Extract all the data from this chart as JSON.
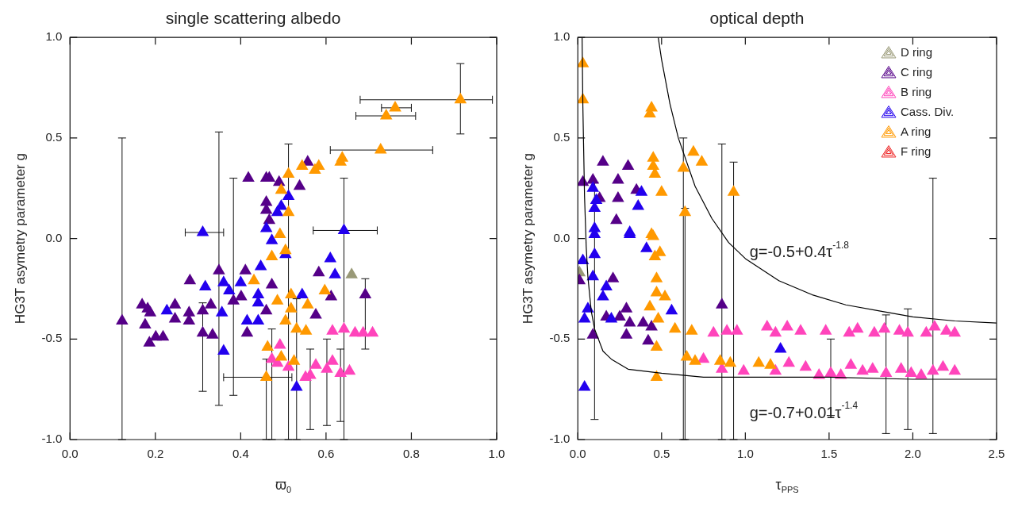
{
  "chart_data": [
    {
      "type": "scatter",
      "title": "single scattering albedo",
      "xlabel": "ϖ$_{0}$",
      "ylabel": "HG3T asymetry parameter g",
      "xlim": [
        0,
        1
      ],
      "xticks": [
        {
          "value": 0,
          "label": "0.0"
        },
        {
          "value": 0.2,
          "label": "0.2"
        },
        {
          "value": 0.4,
          "label": "0.4"
        },
        {
          "value": 0.6,
          "label": "0.6"
        },
        {
          "value": 0.8,
          "label": "0.8"
        },
        {
          "value": 1,
          "label": "1.0"
        }
      ],
      "ylim": [
        -1,
        1
      ],
      "yticks": [
        {
          "value": -1,
          "label": "-1.0"
        },
        {
          "value": -0.5,
          "label": "-0.5"
        },
        {
          "value": 0,
          "label": "0.0"
        },
        {
          "value": 0.5,
          "label": "0.5"
        },
        {
          "value": 1,
          "label": "1.0"
        }
      ],
      "marker": "triangle",
      "grid": false,
      "legend": false,
      "series": [
        {
          "color": "#999977",
          "x": [
            0.66
          ],
          "values": [
            -0.18
          ]
        },
        {
          "color": "#550088",
          "x": [
            0.418,
            0.46,
            0.467,
            0.49,
            0.557,
            0.538,
            0.46,
            0.46,
            0.467,
            0.281,
            0.349,
            0.411,
            0.473,
            0.583,
            0.612,
            0.692,
            0.122,
            0.169,
            0.182,
            0.176,
            0.188,
            0.186,
            0.201,
            0.218,
            0.246,
            0.246,
            0.279,
            0.279,
            0.311,
            0.33,
            0.311,
            0.334,
            0.383,
            0.401,
            0.415,
            0.46,
            0.576
          ],
          "values": [
            0.3,
            0.3,
            0.3,
            0.28,
            0.38,
            0.26,
            0.18,
            0.14,
            0.09,
            -0.21,
            -0.16,
            -0.16,
            -0.23,
            -0.17,
            -0.29,
            -0.28,
            -0.41,
            -0.33,
            -0.35,
            -0.43,
            -0.37,
            -0.52,
            -0.49,
            -0.49,
            -0.33,
            -0.4,
            -0.37,
            -0.41,
            -0.36,
            -0.33,
            -0.47,
            -0.48,
            -0.31,
            -0.29,
            -0.47,
            -0.36,
            -0.38
          ],
          "errors": [
            null,
            null,
            null,
            null,
            null,
            null,
            null,
            null,
            null,
            null,
            [
              -0.83,
              0.53
            ],
            null,
            null,
            null,
            null,
            [
              -0.55,
              -0.2
            ],
            [
              -1.0,
              0.5
            ],
            null,
            null,
            null,
            null,
            null,
            null,
            null,
            null,
            null,
            null,
            null,
            null,
            null,
            [
              -0.76,
              -0.32
            ],
            null,
            [
              -0.78,
              0.3
            ],
            null,
            null,
            null,
            null
          ]
        },
        {
          "color": "#ff44bb",
          "x": [
            0.615,
            0.642,
            0.668,
            0.687,
            0.709,
            0.492,
            0.473,
            0.486,
            0.512,
            0.563,
            0.576,
            0.602,
            0.615,
            0.634,
            0.655,
            0.552
          ],
          "values": [
            -0.46,
            -0.45,
            -0.47,
            -0.47,
            -0.47,
            -0.53,
            -0.6,
            -0.62,
            -0.64,
            -0.68,
            -0.63,
            -0.65,
            -0.61,
            -0.67,
            -0.66,
            -0.69
          ],
          "errors": [
            null,
            null,
            null,
            null,
            null,
            null,
            [
              -1.0,
              -0.45
            ],
            null,
            null,
            [
              -0.95,
              -0.55
            ],
            null,
            [
              -0.93,
              -0.5
            ],
            null,
            [
              -0.91,
              -0.55
            ],
            null,
            null
          ]
        },
        {
          "color": "#2200ee",
          "x": [
            0.311,
            0.642,
            0.46,
            0.495,
            0.512,
            0.486,
            0.473,
            0.505,
            0.447,
            0.61,
            0.621,
            0.317,
            0.36,
            0.373,
            0.4,
            0.441,
            0.441,
            0.227,
            0.356,
            0.415,
            0.441,
            0.544,
            0.36,
            0.531
          ],
          "values": [
            0.03,
            0.04,
            0.05,
            0.16,
            0.21,
            0.13,
            -0.01,
            -0.08,
            -0.14,
            -0.1,
            -0.18,
            -0.24,
            -0.22,
            -0.26,
            -0.22,
            -0.28,
            -0.32,
            -0.36,
            -0.37,
            -0.41,
            -0.41,
            -0.28,
            -0.56,
            -0.74
          ],
          "errors": [
            null,
            [
              -1.0,
              0.3
            ],
            null,
            null,
            null,
            null,
            null,
            null,
            null,
            null,
            null,
            null,
            null,
            null,
            null,
            null,
            null,
            null,
            null,
            null,
            null,
            null,
            null,
            null
          ],
          "xerrors": [
            [
              0.27,
              0.36
            ],
            [
              0.57,
              0.72
            ],
            null,
            null,
            null,
            null,
            null,
            null,
            null,
            null,
            null,
            null,
            null,
            null,
            null,
            null,
            null,
            null,
            null,
            null,
            null,
            null,
            null,
            null
          ]
        },
        {
          "color": "#ff9900",
          "x": [
            0.915,
            0.762,
            0.741,
            0.728,
            0.638,
            0.634,
            0.583,
            0.574,
            0.544,
            0.512,
            0.495,
            0.512,
            0.492,
            0.505,
            0.473,
            0.431,
            0.597,
            0.518,
            0.486,
            0.557,
            0.518,
            0.505,
            0.531,
            0.553,
            0.463,
            0.495,
            0.525,
            0.46
          ],
          "values": [
            0.69,
            0.65,
            0.61,
            0.44,
            0.4,
            0.38,
            0.36,
            0.34,
            0.36,
            0.32,
            0.24,
            0.13,
            0.02,
            -0.06,
            -0.09,
            -0.21,
            -0.26,
            -0.28,
            -0.31,
            -0.33,
            -0.35,
            -0.41,
            -0.45,
            -0.46,
            -0.54,
            -0.59,
            -0.61,
            -0.69
          ],
          "errors": [
            [
              0.52,
              0.87
            ],
            null,
            null,
            null,
            null,
            null,
            null,
            null,
            null,
            null,
            null,
            [
              -1.0,
              0.47
            ],
            null,
            null,
            null,
            null,
            null,
            null,
            null,
            null,
            null,
            null,
            [
              -1.0,
              -0.3
            ],
            null,
            null,
            null,
            null,
            [
              -1.0,
              -0.6
            ]
          ],
          "xerrors": [
            [
              0.68,
              0.99
            ],
            [
              0.73,
              0.8
            ],
            [
              0.67,
              0.81
            ],
            [
              0.61,
              0.85
            ],
            null,
            null,
            null,
            null,
            null,
            null,
            null,
            null,
            null,
            null,
            null,
            null,
            null,
            null,
            null,
            null,
            null,
            null,
            null,
            null,
            null,
            null,
            null,
            [
              0.36,
              0.52
            ]
          ]
        }
      ]
    },
    {
      "type": "scatter",
      "title": "optical depth",
      "xlabel": "τ$_{PPS}$",
      "ylabel": "HG3T asymetry parameter g",
      "xlim": [
        0,
        2.5
      ],
      "xticks": [
        {
          "value": 0,
          "label": "0.0"
        },
        {
          "value": 0.5,
          "label": "0.5"
        },
        {
          "value": 1,
          "label": "1.0"
        },
        {
          "value": 1.5,
          "label": "1.5"
        },
        {
          "value": 2,
          "label": "2.0"
        },
        {
          "value": 2.5,
          "label": "2.5"
        }
      ],
      "ylim": [
        -1,
        1
      ],
      "yticks": [
        {
          "value": -1,
          "label": "-1.0"
        },
        {
          "value": -0.5,
          "label": "-0.5"
        },
        {
          "value": 0,
          "label": "0.0"
        },
        {
          "value": 0.5,
          "label": "0.5"
        },
        {
          "value": 1,
          "label": "1.0"
        }
      ],
      "marker": "triangle",
      "grid": false,
      "legend": "top right",
      "annotations": [
        "g=-0.5+0.4τ$^{-1.8}$",
        "g=-0.7+0.01τ$^{-1.4}$"
      ],
      "series": [
        {
          "name": "D ring",
          "color": "#999977",
          "x": [
            0.01
          ],
          "values": [
            -0.17
          ]
        },
        {
          "name": "C ring",
          "color": "#550088",
          "x": [
            0.03,
            0.09,
            0.15,
            0.24,
            0.3,
            0.35,
            0.24,
            0.23,
            0.13,
            0.21,
            0.01,
            0.29,
            0.25,
            0.31,
            0.39,
            0.29,
            0.42,
            0.09,
            0.86,
            0.44,
            0.17
          ],
          "values": [
            0.28,
            0.29,
            0.38,
            0.29,
            0.36,
            0.24,
            0.2,
            0.09,
            0.2,
            -0.2,
            -0.21,
            -0.35,
            -0.39,
            -0.42,
            -0.42,
            -0.48,
            -0.51,
            -0.48,
            -0.33,
            -0.44,
            -0.39
          ],
          "errors": [
            null,
            null,
            null,
            null,
            null,
            null,
            null,
            null,
            null,
            null,
            null,
            null,
            null,
            null,
            null,
            null,
            null,
            null,
            [
              -1.0,
              0.47
            ],
            null,
            null
          ]
        },
        {
          "name": "B ring",
          "color": "#ff44bb",
          "x": [
            0.81,
            0.89,
            0.95,
            1.13,
            1.18,
            1.25,
            1.33,
            1.48,
            1.62,
            1.67,
            1.77,
            1.83,
            1.92,
            1.97,
            2.08,
            2.13,
            2.2,
            2.25,
            0.75,
            0.86,
            0.99,
            1.18,
            1.26,
            1.36,
            1.44,
            1.51,
            1.57,
            1.63,
            1.7,
            1.76,
            1.84,
            1.93,
            1.99,
            2.05,
            2.12,
            2.18,
            2.25
          ],
          "values": [
            -0.47,
            -0.46,
            -0.46,
            -0.44,
            -0.47,
            -0.44,
            -0.46,
            -0.46,
            -0.47,
            -0.45,
            -0.47,
            -0.45,
            -0.46,
            -0.47,
            -0.47,
            -0.44,
            -0.46,
            -0.47,
            -0.6,
            -0.65,
            -0.66,
            -0.66,
            -0.62,
            -0.64,
            -0.68,
            -0.67,
            -0.68,
            -0.63,
            -0.66,
            -0.65,
            -0.67,
            -0.65,
            -0.67,
            -0.68,
            -0.66,
            -0.64,
            -0.66
          ],
          "errors": [
            null,
            null,
            null,
            null,
            null,
            null,
            null,
            null,
            null,
            null,
            null,
            null,
            null,
            [
              -0.95,
              -0.35
            ],
            null,
            null,
            null,
            null,
            null,
            null,
            null,
            null,
            null,
            null,
            null,
            [
              -0.88,
              -0.5
            ],
            null,
            null,
            null,
            null,
            [
              -0.97,
              -0.38
            ],
            null,
            null,
            null,
            [
              -0.97,
              0.3
            ],
            null,
            null
          ]
        },
        {
          "name": "Cass. Div.",
          "color": "#2200ee",
          "x": [
            0.09,
            0.38,
            0.11,
            0.1,
            0.36,
            0.1,
            0.31,
            0.1,
            0.31,
            0.41,
            0.1,
            0.03,
            0.09,
            0.17,
            0.15,
            0.06,
            0.2,
            0.04,
            0.56,
            1.21,
            0.04
          ],
          "values": [
            0.25,
            0.23,
            0.19,
            0.15,
            0.16,
            0.05,
            0.03,
            0.02,
            0.02,
            -0.05,
            -0.08,
            -0.11,
            -0.19,
            -0.24,
            -0.29,
            -0.35,
            -0.4,
            -0.4,
            -0.36,
            -0.55,
            -0.74
          ],
          "errors": [
            null,
            null,
            null,
            null,
            null,
            null,
            null,
            null,
            null,
            null,
            [
              -0.9,
              0.28
            ],
            null,
            null,
            null,
            null,
            null,
            null,
            null,
            null,
            null,
            null
          ]
        },
        {
          "name": "A ring",
          "color": "#ff9900",
          "x": [
            0.03,
            0.03,
            0.44,
            0.43,
            0.45,
            0.45,
            0.46,
            0.5,
            0.63,
            0.69,
            0.74,
            0.93,
            0.64,
            0.44,
            0.45,
            0.49,
            0.46,
            0.47,
            0.47,
            0.52,
            0.43,
            0.48,
            0.58,
            0.68,
            0.47,
            0.65,
            0.7,
            0.85,
            0.91,
            1.08,
            1.15,
            0.47
          ],
          "values": [
            0.87,
            0.69,
            0.65,
            0.62,
            0.4,
            0.36,
            0.32,
            0.23,
            0.35,
            0.43,
            0.38,
            0.23,
            0.13,
            0.02,
            0.01,
            -0.07,
            -0.09,
            -0.2,
            -0.27,
            -0.29,
            -0.34,
            -0.4,
            -0.45,
            -0.46,
            -0.54,
            -0.59,
            -0.61,
            -0.61,
            -0.62,
            -0.62,
            -0.63,
            -0.69
          ],
          "errors": [
            null,
            null,
            null,
            null,
            null,
            null,
            null,
            null,
            [
              -1.0,
              0.5
            ],
            null,
            null,
            [
              -1.0,
              0.38
            ],
            [
              -1.0,
              0.15
            ],
            null,
            null,
            null,
            null,
            null,
            null,
            null,
            null,
            null,
            null,
            null,
            null,
            null,
            null,
            null,
            null,
            null,
            null,
            null
          ]
        },
        {
          "name": "F ring",
          "color": "#ee2222"
        },
        {
          "type": "line",
          "color": "#000000",
          "marker": "none",
          "x": [
            0.48,
            0.5,
            0.55,
            0.6,
            0.7,
            0.8,
            0.9,
            1.0,
            1.2,
            1.4,
            1.6,
            1.8,
            2.0,
            2.25,
            2.5
          ],
          "values": [
            1.0,
            0.89,
            0.67,
            0.5,
            0.26,
            0.1,
            -0.02,
            -0.1,
            -0.21,
            -0.28,
            -0.33,
            -0.36,
            -0.39,
            -0.41,
            -0.42
          ]
        },
        {
          "type": "line",
          "color": "#000000",
          "marker": "none",
          "x": [
            0.0255,
            0.03,
            0.04,
            0.05,
            0.06,
            0.08,
            0.1,
            0.15,
            0.2,
            0.3,
            0.5,
            0.75,
            1.0,
            1.5,
            2.0,
            2.5
          ],
          "values": [
            1.0,
            0.66,
            0.21,
            -0.04,
            -0.19,
            -0.36,
            -0.45,
            -0.56,
            -0.6,
            -0.65,
            -0.67,
            -0.69,
            -0.69,
            -0.69,
            -0.7,
            -0.7
          ]
        }
      ]
    }
  ]
}
